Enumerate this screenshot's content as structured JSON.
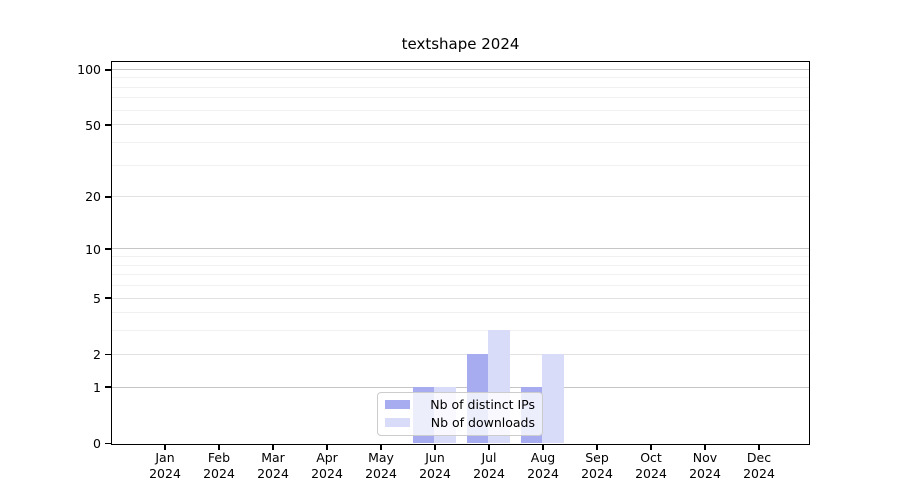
{
  "title": "textshape 2024",
  "chart_data": {
    "type": "bar",
    "title": "textshape 2024",
    "categories": [
      "Jan",
      "Feb",
      "Mar",
      "Apr",
      "May",
      "Jun",
      "Jul",
      "Aug",
      "Sep",
      "Oct",
      "Nov",
      "Dec"
    ],
    "x_year_label": "2024",
    "series": [
      {
        "name": "Nb of distinct IPs",
        "color": "#a7abf0",
        "values": [
          0,
          0,
          0,
          0,
          0,
          1,
          2,
          1,
          0,
          0,
          0,
          0
        ]
      },
      {
        "name": "Nb of downloads",
        "color": "#d9dcf9",
        "values": [
          0,
          0,
          0,
          0,
          0,
          1,
          3,
          2,
          0,
          0,
          0,
          0
        ]
      }
    ],
    "y_axis": {
      "scale": "log1p",
      "ticks": [
        0,
        1,
        2,
        5,
        10,
        20,
        50,
        100
      ],
      "minor_gridlines": [
        3,
        4,
        6,
        7,
        8,
        9,
        30,
        40,
        60,
        70,
        80,
        90
      ],
      "ylim": [
        0,
        113
      ]
    },
    "legend": {
      "position": "lower-center-inside"
    },
    "grid": "on"
  }
}
